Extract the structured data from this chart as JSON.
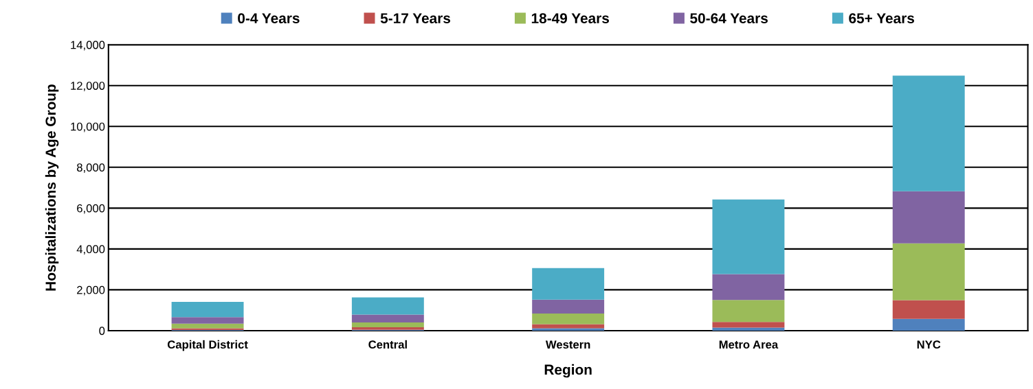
{
  "chart_data": {
    "type": "bar",
    "stacked": true,
    "xlabel": "Region",
    "ylabel": "Hospitalizations by Age Group",
    "categories": [
      "Capital District",
      "Central",
      "Western",
      "Metro Area",
      "NYC"
    ],
    "series": [
      {
        "name": "0-4 Years",
        "color": "#4f81bd",
        "values": [
          30,
          40,
          120,
          150,
          580
        ]
      },
      {
        "name": "5-17 Years",
        "color": "#c0504d",
        "values": [
          90,
          130,
          200,
          280,
          910
        ]
      },
      {
        "name": "18-49 Years",
        "color": "#9bbb59",
        "values": [
          220,
          230,
          520,
          1070,
          2780
        ]
      },
      {
        "name": "50-64 Years",
        "color": "#8064a2",
        "values": [
          320,
          390,
          680,
          1270,
          2560
        ]
      },
      {
        "name": "65+ Years",
        "color": "#4bacc6",
        "values": [
          750,
          840,
          1540,
          3650,
          5660
        ]
      }
    ],
    "ylim": [
      0,
      14000
    ],
    "yticks": [
      {
        "value": 0,
        "label": "0"
      },
      {
        "value": 2000,
        "label": "2,000"
      },
      {
        "value": 4000,
        "label": "4,000"
      },
      {
        "value": 6000,
        "label": "6,000"
      },
      {
        "value": 8000,
        "label": "8,000"
      },
      {
        "value": 10000,
        "label": "10,000"
      },
      {
        "value": 12000,
        "label": "12,000"
      },
      {
        "value": 14000,
        "label": "14,000"
      }
    ],
    "grid": "y",
    "legend": "top"
  }
}
